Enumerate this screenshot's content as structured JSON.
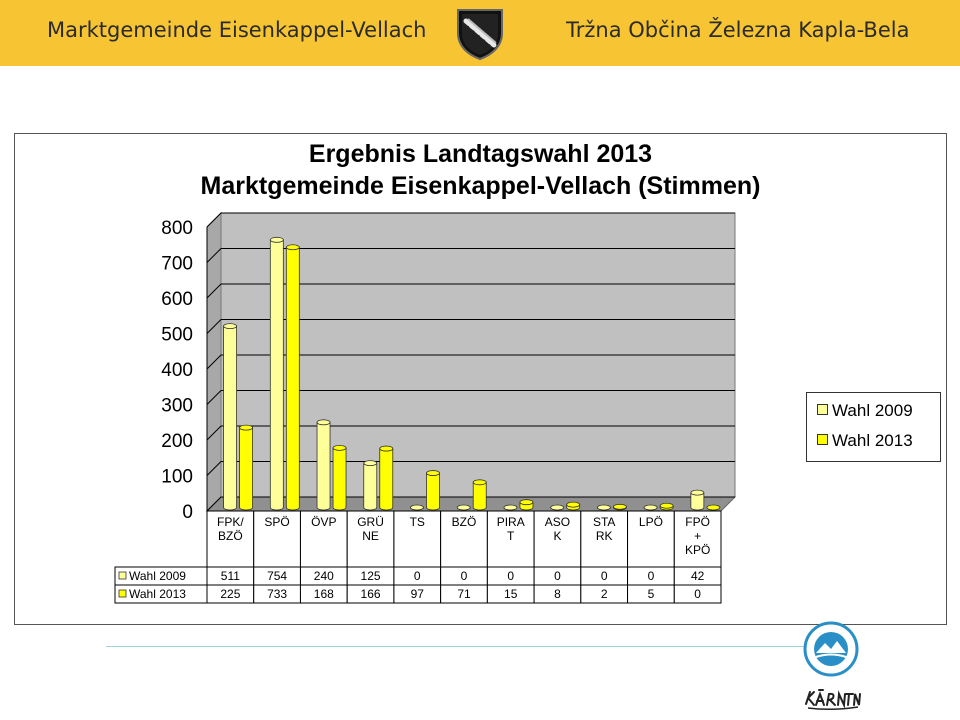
{
  "header": {
    "left_text": "Marktgemeinde Eisenkappel-Vellach",
    "right_text": "Tržna Občina Železna Kapla-Bela",
    "bg_color": "#f7c433"
  },
  "chart_data": {
    "type": "bar",
    "title": "Ergebnis Landtagswahl 2013",
    "subtitle": "Marktgemeinde Eisenkappel-Vellach (Stimmen)",
    "categories": [
      "FPK/\nBZÖ",
      "SPÖ",
      "ÖVP",
      "GRÜ\nNE",
      "TS",
      "BZÖ",
      "PIRA\nT",
      "ASO\nK",
      "STA\nRK",
      "LPÖ",
      "FPÖ\n+\nKPÖ"
    ],
    "series": [
      {
        "name": "Wahl 2009",
        "values": [
          511,
          754,
          240,
          125,
          0,
          0,
          0,
          0,
          0,
          0,
          42
        ],
        "color": "#ffff99"
      },
      {
        "name": "Wahl 2013",
        "values": [
          225,
          733,
          168,
          166,
          97,
          71,
          15,
          8,
          2,
          5,
          0
        ],
        "color": "#ffff00"
      }
    ],
    "ylim": [
      0,
      800
    ],
    "yticks": [
      "0",
      "100",
      "200",
      "300",
      "400",
      "500",
      "600",
      "700",
      "800"
    ],
    "grid": true,
    "legend_position": "right",
    "data_table": true
  },
  "footer": {
    "badge_icon": "kurort-badge-icon",
    "logo_icon": "kaernten-logo-icon",
    "line_color": "#9fd3e0"
  }
}
